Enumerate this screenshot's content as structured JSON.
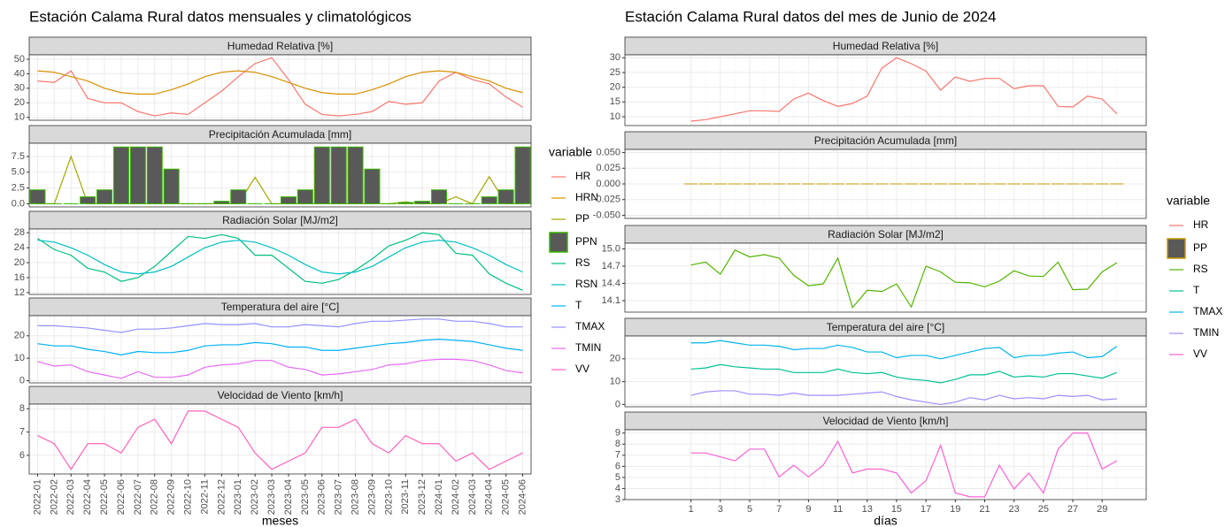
{
  "chart_data": [
    {
      "type": "facet-line",
      "title": "Estación Calama Rural datos mensuales y climatológicos",
      "xlabel": "meses",
      "legend_title": "variable",
      "grid": true,
      "categories": [
        "2022-01",
        "2022-02",
        "2022-03",
        "2022-04",
        "2022-05",
        "2022-06",
        "2022-07",
        "2022-08",
        "2022-09",
        "2022-10",
        "2022-11",
        "2022-12",
        "2023-01",
        "2023-02",
        "2023-03",
        "2023-04",
        "2023-05",
        "2023-06",
        "2023-07",
        "2023-08",
        "2023-09",
        "2023-10",
        "2023-11",
        "2023-12",
        "2024-01",
        "2024-02",
        "2024-03",
        "2024-04",
        "2024-05",
        "2024-06"
      ],
      "panels": [
        {
          "title": "Humedad Relativa [%]",
          "ylim": [
            8,
            53
          ],
          "yticks": [
            10,
            20,
            30,
            40,
            50
          ],
          "series": [
            {
              "name": "HR",
              "kind": "line",
              "color": "#F8766D",
              "values": [
                35,
                34,
                42,
                23,
                20,
                20,
                14,
                11,
                13,
                12,
                20,
                28,
                38,
                47,
                51,
                36,
                19,
                12,
                11,
                12,
                14,
                21,
                19,
                20,
                35,
                41,
                36,
                33,
                24,
                17
              ]
            },
            {
              "name": "HRN",
              "kind": "line",
              "color": "#D89000",
              "values": [
                42,
                41,
                38,
                35,
                30,
                27,
                26,
                26,
                29,
                33,
                38,
                41,
                42,
                41,
                38,
                34,
                30,
                27,
                26,
                26,
                29,
                33,
                38,
                41,
                42,
                41,
                38,
                35,
                30,
                27
              ]
            }
          ]
        },
        {
          "title": "Precipitación Acumulada [mm]",
          "ylim": [
            -0.5,
            9.6
          ],
          "yticks": [
            {
              "value": 0,
              "label": "0.0"
            },
            2.5,
            {
              "value": 5,
              "label": "5.0"
            },
            7.5
          ],
          "series": [
            {
              "name": "PP",
              "kind": "line",
              "color": "#A3A500",
              "values": [
                0,
                0,
                7.5,
                0,
                0,
                0,
                0,
                0,
                0,
                0,
                0,
                0,
                0,
                4.2,
                0,
                0,
                0,
                0,
                0,
                0,
                0,
                0,
                0.3,
                0,
                0,
                1.1,
                0,
                4.3,
                0,
                0
              ]
            },
            {
              "name": "PPN",
              "kind": "bar",
              "color": "#39B600",
              "fill": "#595959",
              "values": [
                2.2,
                0,
                0,
                1.1,
                2.2,
                9,
                9,
                9,
                5.5,
                0,
                0,
                0.4,
                2.2,
                0,
                0,
                1.1,
                2.2,
                9,
                9,
                9,
                5.5,
                0,
                0.2,
                0.4,
                2.2,
                0,
                0,
                1.1,
                2.2,
                9
              ]
            }
          ]
        },
        {
          "title": "Radiación Solar [MJ/m2]",
          "ylim": [
            11.5,
            29
          ],
          "yticks": [
            12,
            16,
            20,
            24,
            28
          ],
          "series": [
            {
              "name": "RS",
              "kind": "line",
              "color": "#00BF7D",
              "values": [
                26.5,
                23.5,
                22,
                18.5,
                17.5,
                15,
                16,
                19,
                23,
                27,
                26.5,
                27.5,
                26.5,
                22,
                22,
                18.5,
                15,
                14.5,
                15.5,
                18,
                21,
                24.5,
                26,
                28,
                27.5,
                22.5,
                22,
                17,
                14.5,
                12.6
              ]
            },
            {
              "name": "RSN",
              "kind": "line",
              "color": "#00BFC4",
              "values": [
                26,
                25.5,
                24,
                22,
                19.5,
                17.5,
                17,
                17.5,
                19,
                21.5,
                24,
                25.5,
                26,
                25.5,
                24,
                22,
                19.5,
                17.5,
                17,
                17.5,
                19,
                21.5,
                24,
                25.5,
                26,
                25.5,
                24,
                22,
                19.5,
                17.5
              ]
            }
          ]
        },
        {
          "title": "Temperatura del aire [°C]",
          "ylim": [
            -1,
            29
          ],
          "yticks": [
            0,
            10,
            20
          ],
          "series": [
            {
              "name": "T",
              "kind": "line",
              "color": "#00B0F6",
              "values": [
                16.5,
                15.5,
                15.5,
                14,
                13,
                11.5,
                13,
                12.5,
                12.5,
                13.5,
                15.5,
                16,
                16,
                17,
                16.5,
                15,
                15,
                13.5,
                13.5,
                14.5,
                15.5,
                16.5,
                17,
                18,
                18.5,
                18,
                17.5,
                16,
                14.5,
                13.5
              ]
            },
            {
              "name": "TMAX",
              "kind": "line",
              "color": "#9590FF",
              "values": [
                24.5,
                24.5,
                24,
                23.5,
                22.5,
                21.5,
                23,
                23,
                23.5,
                24.5,
                25.5,
                25,
                25,
                25.5,
                24,
                24,
                25,
                24.5,
                24,
                25.5,
                26.5,
                26.5,
                27,
                27.5,
                27.5,
                26.5,
                26.5,
                25.5,
                24,
                24
              ]
            },
            {
              "name": "TMIN",
              "kind": "line",
              "color": "#E76BF3",
              "values": [
                8.5,
                6.5,
                7,
                4,
                2.5,
                1,
                4,
                1.5,
                1.5,
                2.5,
                6,
                7,
                7.5,
                9,
                9,
                6,
                5,
                2.5,
                3,
                4,
                5,
                7,
                7.5,
                9,
                9.5,
                9.5,
                9,
                7,
                4.5,
                3.5
              ]
            }
          ]
        },
        {
          "title": "Velocidad de Viento [km/h]",
          "ylim": [
            5.2,
            8.2
          ],
          "yticks": [
            6,
            7,
            8
          ],
          "series": [
            {
              "name": "VV",
              "kind": "line",
              "color": "#FF62BC",
              "values": [
                6.85,
                6.5,
                5.4,
                6.5,
                6.5,
                6.1,
                7.2,
                7.55,
                6.5,
                7.9,
                7.9,
                7.55,
                7.2,
                6.1,
                5.4,
                5.75,
                6.1,
                7.2,
                7.2,
                7.55,
                6.5,
                6.1,
                6.85,
                6.5,
                6.5,
                5.75,
                6.1,
                5.4,
                5.75,
                6.1
              ]
            }
          ]
        }
      ]
    },
    {
      "type": "facet-line",
      "title": "Estación Calama Rural datos del mes de Junio de 2024",
      "xlabel": "días",
      "legend_title": "variable",
      "grid": true,
      "x": [
        1,
        2,
        3,
        4,
        5,
        6,
        7,
        8,
        9,
        10,
        11,
        12,
        13,
        14,
        15,
        16,
        17,
        18,
        19,
        20,
        21,
        22,
        23,
        24,
        25,
        26,
        27,
        28,
        29,
        30
      ],
      "xlim": [
        -3.5,
        32
      ],
      "xticks": [
        1,
        3,
        5,
        7,
        9,
        11,
        13,
        15,
        17,
        19,
        21,
        23,
        25,
        27,
        29
      ],
      "panels": [
        {
          "title": "Humedad Relativa [%]",
          "ylim": [
            7,
            31
          ],
          "yticks": [
            10,
            15,
            20,
            25,
            30
          ],
          "series": [
            {
              "name": "HR",
              "kind": "line",
              "color": "#F8766D",
              "values": [
                8.5,
                9,
                10,
                11,
                12,
                12,
                11.8,
                16,
                18,
                15.5,
                13.5,
                14.5,
                17,
                26.5,
                30,
                28,
                25.5,
                19,
                23.5,
                22,
                23,
                23,
                19.5,
                20.5,
                20.5,
                13.5,
                13.3,
                17,
                16,
                11
              ]
            }
          ]
        },
        {
          "title": "Precipitación Acumulada [mm]",
          "ylim": [
            -0.055,
            0.055
          ],
          "yticks": [
            {
              "value": -0.05,
              "label": "-0.050"
            },
            {
              "value": -0.025,
              "label": "-0.025"
            },
            {
              "value": 0,
              "label": "0.000"
            },
            {
              "value": 0.025,
              "label": "0.025"
            },
            {
              "value": 0.05,
              "label": "0.050"
            }
          ],
          "series": [
            {
              "name": "PP",
              "kind": "bar",
              "color": "#C49A00",
              "fill": "#595959",
              "values": [
                0,
                0,
                0,
                0,
                0,
                0,
                0,
                0,
                0,
                0,
                0,
                0,
                0,
                0,
                0,
                0,
                0,
                0,
                0,
                0,
                0,
                0,
                0,
                0,
                0,
                0,
                0,
                0,
                0,
                0
              ]
            }
          ]
        },
        {
          "title": "Radiación Solar [MJ/m2]",
          "ylim": [
            13.9,
            15.1
          ],
          "yticks": [
            14.1,
            14.4,
            14.7,
            {
              "value": 15,
              "label": "15.0"
            }
          ],
          "series": [
            {
              "name": "RS",
              "kind": "line",
              "color": "#53B400",
              "values": [
                14.72,
                14.77,
                14.56,
                14.98,
                14.86,
                14.9,
                14.84,
                14.54,
                14.36,
                14.39,
                14.84,
                13.98,
                14.28,
                14.26,
                14.39,
                13.99,
                14.7,
                14.6,
                14.42,
                14.41,
                14.34,
                14.44,
                14.62,
                14.53,
                14.52,
                14.77,
                14.29,
                14.3,
                14.6,
                14.76
              ]
            }
          ]
        },
        {
          "title": "Temperatura del aire [°C]",
          "ylim": [
            -1,
            30
          ],
          "yticks": [
            0,
            10,
            20
          ],
          "series": [
            {
              "name": "T",
              "kind": "line",
              "color": "#00C094",
              "values": [
                15.5,
                16,
                17.5,
                16.5,
                16,
                15.5,
                15.5,
                14,
                14,
                14,
                15.5,
                14,
                13.5,
                14,
                12,
                11,
                10.5,
                9.5,
                11,
                13,
                13,
                14.5,
                12,
                12.5,
                12,
                13.5,
                13.5,
                12.5,
                11.5,
                14
              ]
            },
            {
              "name": "TMAX",
              "kind": "line",
              "color": "#00B6EB",
              "values": [
                27,
                27,
                28,
                27,
                26,
                26,
                25.5,
                24,
                24.5,
                24.5,
                26,
                25,
                23,
                23,
                20.5,
                21.5,
                21.5,
                20,
                21.5,
                23,
                24.5,
                25,
                20.5,
                21.5,
                21.5,
                22.5,
                23,
                20.5,
                21,
                25.5
              ]
            },
            {
              "name": "TMIN",
              "kind": "line",
              "color": "#A58AFF",
              "values": [
                4,
                5.5,
                6,
                6,
                4.5,
                4.5,
                4,
                5,
                4,
                4,
                4,
                4.5,
                5,
                5.5,
                3.5,
                2,
                1,
                0,
                1,
                3,
                2,
                4,
                2.5,
                3,
                2.5,
                4,
                3.5,
                4,
                2,
                2.5
              ]
            }
          ]
        },
        {
          "title": "Velocidad de Viento [km/h]",
          "ylim": [
            3,
            9.3
          ],
          "yticks": [
            3,
            4,
            5,
            6,
            7,
            8,
            9
          ],
          "series": [
            {
              "name": "VV",
              "kind": "line",
              "color": "#FB61D7",
              "values": [
                7.2,
                7.2,
                6.85,
                6.5,
                7.55,
                7.55,
                5.05,
                6.1,
                5.05,
                6.1,
                8.25,
                5.4,
                5.75,
                5.75,
                5.4,
                3.6,
                4.7,
                7.9,
                3.6,
                3.25,
                3.25,
                6.1,
                3.95,
                5.4,
                3.6,
                7.55,
                9,
                9,
                5.75,
                6.5
              ]
            }
          ]
        }
      ]
    }
  ]
}
